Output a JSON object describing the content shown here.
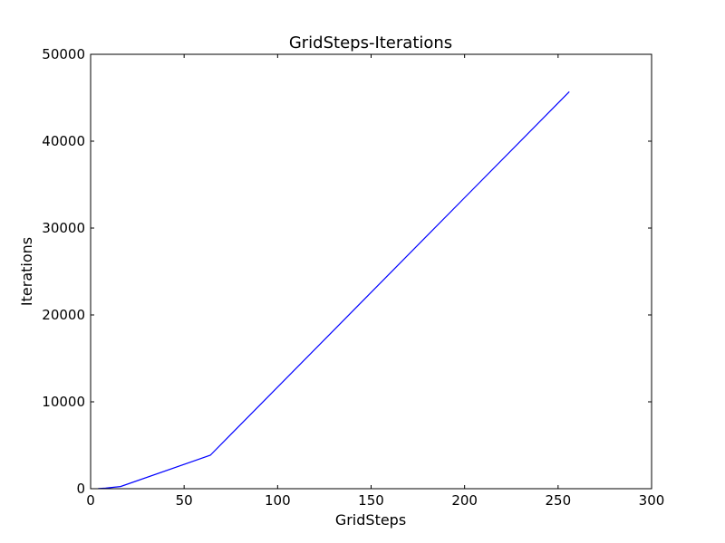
{
  "chart_data": {
    "type": "line",
    "title": "GridSteps-Iterations",
    "xlabel": "GridSteps",
    "ylabel": "Iterations",
    "xlim": [
      0,
      300
    ],
    "ylim": [
      0,
      50000
    ],
    "xticks": [
      0,
      50,
      100,
      150,
      200,
      250,
      300
    ],
    "yticks": [
      0,
      10000,
      20000,
      30000,
      40000,
      50000
    ],
    "grid": false,
    "series": [
      {
        "color": "#0000ff",
        "x": [
          4,
          8,
          16,
          64,
          256
        ],
        "y": [
          10,
          60,
          250,
          3850,
          45700
        ]
      }
    ]
  }
}
